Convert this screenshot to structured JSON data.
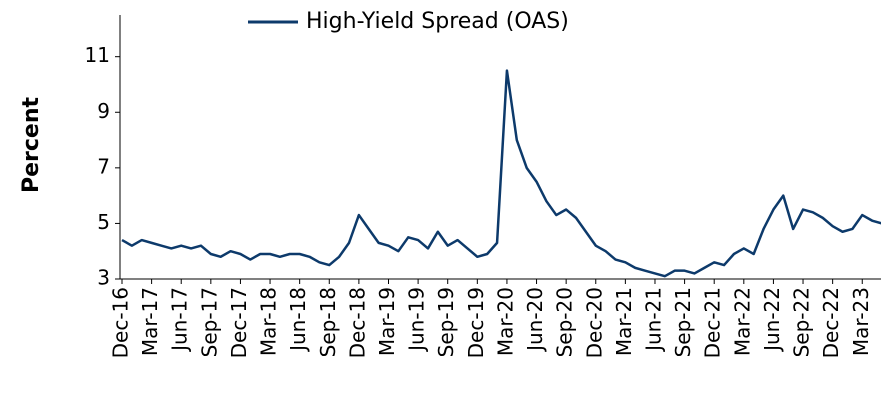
{
  "chart_data": {
    "type": "line",
    "y_label": "Percent",
    "categories": [
      "Dec-16",
      null,
      null,
      "Mar-17",
      null,
      null,
      "Jun-17",
      null,
      null,
      "Sep-17",
      null,
      null,
      "Dec-17",
      null,
      null,
      "Mar-18",
      null,
      null,
      "Jun-18",
      null,
      null,
      "Sep-18",
      null,
      null,
      "Dec-18",
      null,
      null,
      "Mar-19",
      null,
      null,
      "Jun-19",
      null,
      null,
      "Sep-19",
      null,
      null,
      "Dec-19",
      null,
      null,
      "Mar-20",
      null,
      null,
      "Jun-20",
      null,
      null,
      "Sep-20",
      null,
      null,
      "Dec-20",
      null,
      null,
      "Mar-21",
      null,
      null,
      "Jun-21",
      null,
      null,
      "Sep-21",
      null,
      null,
      "Dec-21",
      null,
      null,
      "Mar-22",
      null,
      null,
      "Jun-22",
      null,
      null,
      "Sep-22",
      null,
      null,
      "Dec-22",
      null,
      null,
      "Mar-23",
      null,
      null
    ],
    "series": [
      {
        "name": "High-Yield Spread (OAS)",
        "color": "#0d3a6b",
        "values": [
          4.4,
          4.2,
          4.4,
          4.3,
          4.2,
          4.1,
          4.2,
          4.1,
          4.2,
          3.9,
          3.8,
          4.0,
          3.9,
          3.7,
          3.9,
          3.9,
          3.8,
          3.9,
          3.9,
          3.8,
          3.6,
          3.5,
          3.8,
          4.3,
          5.3,
          4.8,
          4.3,
          4.2,
          4.0,
          4.5,
          4.4,
          4.1,
          4.7,
          4.2,
          4.4,
          4.1,
          3.8,
          3.9,
          4.3,
          10.5,
          8.0,
          7.0,
          6.5,
          5.8,
          5.3,
          5.5,
          5.2,
          4.7,
          4.2,
          4.0,
          3.7,
          3.6,
          3.4,
          3.3,
          3.2,
          3.1,
          3.3,
          3.3,
          3.2,
          3.4,
          3.6,
          3.5,
          3.9,
          4.1,
          3.9,
          4.8,
          5.5,
          6.0,
          4.8,
          5.5,
          5.4,
          5.2,
          4.9,
          4.7,
          4.8,
          5.3,
          5.1,
          5.0
        ]
      }
    ],
    "ylim": [
      3,
      12.5
    ],
    "yticks": [
      3,
      5,
      7,
      9,
      11
    ],
    "legend": "top"
  }
}
